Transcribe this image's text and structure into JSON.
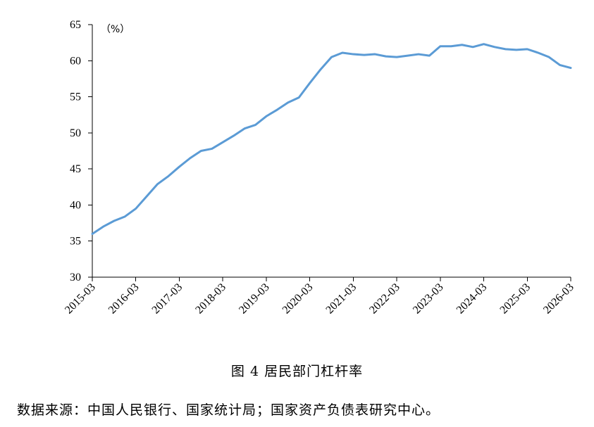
{
  "chart_data": {
    "type": "line",
    "unit": "（%）",
    "ylim": [
      30,
      65
    ],
    "yticks": [
      30,
      35,
      40,
      45,
      50,
      55,
      60,
      65
    ],
    "xtick_labels": [
      "2015-03",
      "2016-03",
      "2017-03",
      "2018-03",
      "2019-03",
      "2020-03",
      "2021-03",
      "2022-03",
      "2023-03",
      "2024-03",
      "2025-03",
      "2026-03"
    ],
    "grid": false,
    "line_color": "#5B9BD5",
    "series": [
      {
        "start": "2015-03",
        "frequency": "quarterly",
        "values": [
          36.0,
          37.0,
          37.8,
          38.4,
          39.5,
          41.2,
          42.9,
          44.0,
          45.3,
          46.5,
          47.5,
          47.8,
          48.7,
          49.6,
          50.6,
          51.1,
          52.3,
          53.2,
          54.2,
          54.9,
          56.9,
          58.8,
          60.5,
          61.1,
          60.9,
          60.8,
          60.9,
          60.6,
          60.5,
          60.7,
          60.9,
          60.7,
          62.0,
          62.0,
          62.2,
          61.9,
          62.3,
          61.9,
          61.6,
          61.5,
          61.6,
          61.1,
          60.5,
          59.4,
          59.0
        ]
      }
    ]
  },
  "caption": "图 4   居民部门杠杆率",
  "source": "数据来源：中国人民银行、国家统计局；国家资产负债表研究中心。"
}
